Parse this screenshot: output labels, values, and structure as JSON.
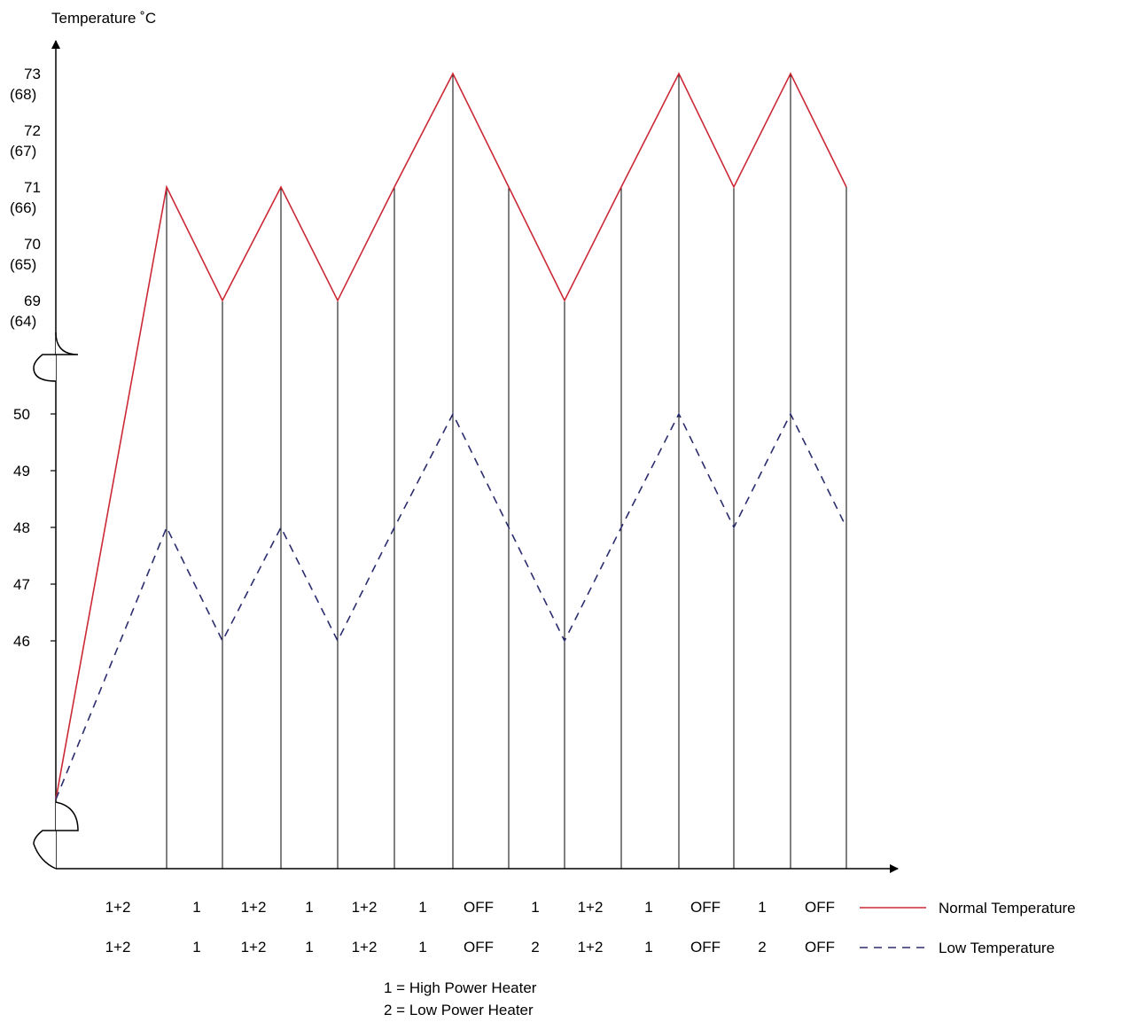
{
  "chart_data": {
    "type": "line",
    "ylabel": "Temperature ˚C",
    "x": [
      0,
      1,
      2,
      3,
      4,
      5,
      6,
      7,
      8,
      9,
      10,
      11,
      12,
      13,
      14
    ],
    "series": [
      {
        "name": "Normal Temperature",
        "color": "#cc2936",
        "style": "solid",
        "values": [
          0,
          71,
          69,
          71,
          69,
          71,
          73,
          71,
          69,
          71,
          73,
          71,
          73,
          71,
          null
        ],
        "note_start": "below axis break"
      },
      {
        "name": "Low Temperature",
        "color": "#2b2d6e",
        "style": "dashed",
        "values": [
          0,
          48,
          46,
          48,
          46,
          48,
          50,
          48,
          46,
          48,
          50,
          48,
          50,
          48,
          null
        ]
      }
    ],
    "upper_ticks": [
      {
        "value": "73",
        "alt": "(68)"
      },
      {
        "value": "72",
        "alt": "(67)"
      },
      {
        "value": "71",
        "alt": "(66)"
      },
      {
        "value": "70",
        "alt": "(65)"
      },
      {
        "value": "69",
        "alt": "(64)"
      }
    ],
    "lower_ticks": [
      "50",
      "49",
      "48",
      "47",
      "46"
    ],
    "axis_break": true,
    "heater_normal": [
      "1+2",
      "1",
      "1+2",
      "1",
      "1+2",
      "1",
      "OFF",
      "1",
      "1+2",
      "1",
      "OFF",
      "1",
      "OFF"
    ],
    "heater_low": [
      "1+2",
      "1",
      "1+2",
      "1",
      "1+2",
      "1",
      "OFF",
      "2",
      "1+2",
      "1",
      "OFF",
      "2",
      "OFF"
    ],
    "legend": [
      {
        "label": "Normal Temperature",
        "color": "#cc2936",
        "style": "solid"
      },
      {
        "label": "Low Temperature",
        "color": "#2b2d6e",
        "style": "dashed"
      }
    ],
    "key": [
      "1 = High Power Heater",
      "2 = Low Power Heater"
    ]
  }
}
